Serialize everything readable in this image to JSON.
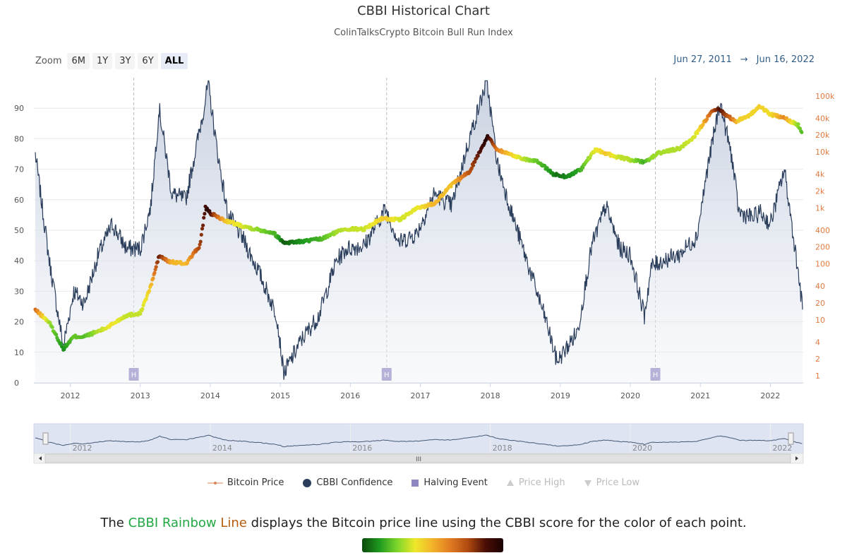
{
  "title": "CBBI Historical Chart",
  "subtitle": "ColinTalksCrypto Bitcoin Bull Run Index",
  "zoom": {
    "label": "Zoom",
    "buttons": [
      "6M",
      "1Y",
      "3Y",
      "6Y",
      "ALL"
    ],
    "active": "ALL"
  },
  "range": {
    "from": "Jun 27, 2011",
    "arrow": "→",
    "to": "Jun 16, 2022"
  },
  "legend": [
    {
      "label": "Bitcoin Price",
      "symbol": "line-dot",
      "color": "#d9845a",
      "enabled": true
    },
    {
      "label": "CBBI Confidence",
      "symbol": "circle",
      "color": "#2b3e5c",
      "enabled": true
    },
    {
      "label": "Halving Event",
      "symbol": "square",
      "color": "#8c86c2",
      "enabled": true
    },
    {
      "label": "Price High",
      "symbol": "triangle-up",
      "color": "#cccccc",
      "enabled": false
    },
    {
      "label": "Price Low",
      "symbol": "triangle-down",
      "color": "#cccccc",
      "enabled": false
    }
  ],
  "navigator": {
    "labels": [
      "2012",
      "2014",
      "2016",
      "2018",
      "2020",
      "2022"
    ],
    "scroll_handle": "III"
  },
  "footer": {
    "prefix": "The ",
    "word1": "CBBI Rainbow",
    "word2": " Line",
    "suffix": " displays the Bitcoin price line using the CBBI score for the color of each point."
  },
  "colors": {
    "cbbi_line": "#2b3e5c",
    "area_fill": "#c9d3e3",
    "halving": "#8c86c2",
    "right_axis": "#e07a40",
    "range_text": "#335c85"
  },
  "chart_data": {
    "type": "line",
    "x_range": [
      "2011-06-27",
      "2022-06-16"
    ],
    "x_ticks": [
      "2012",
      "2013",
      "2014",
      "2015",
      "2016",
      "2017",
      "2018",
      "2019",
      "2020",
      "2021",
      "2022"
    ],
    "y_left": {
      "ticks": [
        0,
        10,
        20,
        30,
        40,
        50,
        60,
        70,
        80,
        90
      ],
      "ylim": [
        0,
        100
      ],
      "scale": "linear"
    },
    "y_right": {
      "ticks": [
        "1",
        "2",
        "4",
        "10",
        "20",
        "40",
        "100",
        "200",
        "400",
        "1k",
        "2k",
        "4k",
        "10k",
        "20k",
        "40k",
        "100k"
      ],
      "tick_values": [
        1,
        2,
        4,
        10,
        20,
        40,
        100,
        200,
        400,
        1000,
        2000,
        4000,
        10000,
        20000,
        40000,
        100000
      ],
      "scale": "log"
    },
    "halvings": [
      {
        "date": "2012-11-28",
        "label": "H"
      },
      {
        "date": "2016-07-09",
        "label": "H"
      },
      {
        "date": "2020-05-11",
        "label": "H"
      }
    ],
    "series": [
      {
        "name": "CBBI Confidence",
        "x": [
          "2011.50",
          "2011.70",
          "2011.90",
          "2012.05",
          "2012.20",
          "2012.40",
          "2012.60",
          "2012.80",
          "2013.00",
          "2013.15",
          "2013.27",
          "2013.45",
          "2013.65",
          "2013.90",
          "2013.97",
          "2014.10",
          "2014.25",
          "2014.45",
          "2014.70",
          "2014.95",
          "2015.05",
          "2015.30",
          "2015.55",
          "2015.80",
          "2015.95",
          "2016.20",
          "2016.50",
          "2016.70",
          "2016.95",
          "2017.20",
          "2017.45",
          "2017.70",
          "2017.95",
          "2018.10",
          "2018.30",
          "2018.55",
          "2018.80",
          "2018.95",
          "2019.05",
          "2019.25",
          "2019.45",
          "2019.65",
          "2019.85",
          "2020.00",
          "2020.20",
          "2020.30",
          "2020.45",
          "2020.70",
          "2020.95",
          "2021.10",
          "2021.28",
          "2021.45",
          "2021.55",
          "2021.75",
          "2021.85",
          "2022.00",
          "2022.20",
          "2022.40",
          "2022.46"
        ],
        "values": [
          75,
          40,
          12,
          30,
          26,
          42,
          52,
          44,
          44,
          58,
          90,
          62,
          60,
          89,
          98,
          76,
          55,
          48,
          36,
          22,
          3,
          14,
          22,
          40,
          44,
          45,
          57,
          46,
          49,
          62,
          58,
          80,
          99,
          72,
          56,
          38,
          20,
          7,
          10,
          17,
          45,
          58,
          44,
          42,
          22,
          38,
          40,
          42,
          48,
          70,
          92,
          74,
          56,
          54,
          56,
          52,
          70,
          36,
          24
        ]
      },
      {
        "name": "Bitcoin Price",
        "x": [
          "2011.50",
          "2011.70",
          "2011.90",
          "2012.05",
          "2012.20",
          "2012.50",
          "2012.80",
          "2013.00",
          "2013.15",
          "2013.27",
          "2013.40",
          "2013.65",
          "2013.85",
          "2013.93",
          "2014.00",
          "2014.20",
          "2014.40",
          "2014.60",
          "2014.90",
          "2015.05",
          "2015.30",
          "2015.60",
          "2015.90",
          "2016.20",
          "2016.45",
          "2016.70",
          "2016.95",
          "2017.20",
          "2017.45",
          "2017.70",
          "2017.96",
          "2018.10",
          "2018.40",
          "2018.70",
          "2018.90",
          "2019.10",
          "2019.30",
          "2019.50",
          "2019.75",
          "2020.00",
          "2020.20",
          "2020.40",
          "2020.70",
          "2020.90",
          "2021.05",
          "2021.15",
          "2021.25",
          "2021.50",
          "2021.70",
          "2021.85",
          "2022.00",
          "2022.20",
          "2022.40",
          "2022.46"
        ],
        "values": [
          15,
          9,
          3,
          5,
          5,
          7,
          12,
          13,
          40,
          140,
          110,
          100,
          210,
          1000,
          800,
          600,
          500,
          430,
          360,
          240,
          250,
          280,
          420,
          420,
          650,
          610,
          980,
          1200,
          2600,
          4400,
          19000,
          11000,
          8000,
          6500,
          4000,
          3600,
          5000,
          11000,
          8500,
          7200,
          6500,
          9500,
          11500,
          18000,
          33000,
          50000,
          58000,
          35000,
          45000,
          65000,
          47000,
          40000,
          30000,
          22000
        ]
      }
    ]
  }
}
